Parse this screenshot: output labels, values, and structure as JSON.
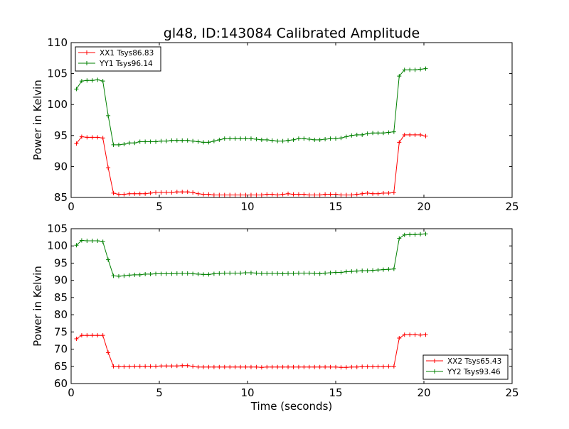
{
  "chart_data": {
    "type": "line",
    "title": "gl48, ID:143084 Calibrated Amplitude",
    "xlabel": "Time (seconds)",
    "panels": [
      {
        "ylabel": "Power in Kelvin",
        "xlim": [
          0,
          25
        ],
        "ylim": [
          85,
          110
        ],
        "xticks": [
          "0",
          "5",
          "10",
          "15",
          "20",
          "25"
        ],
        "yticks": [
          "85",
          "90",
          "95",
          "100",
          "105",
          "110"
        ],
        "legend_position": "upper-left",
        "series": [
          {
            "name": "XX1 Tsys86.83",
            "color": "#ff0000",
            "x": [
              0.3,
              0.6,
              0.9,
              1.2,
              1.5,
              1.8,
              2.1,
              2.4,
              2.7,
              3.0,
              3.3,
              3.6,
              3.9,
              4.2,
              4.5,
              4.8,
              5.1,
              5.4,
              5.7,
              6.0,
              6.3,
              6.6,
              6.9,
              7.2,
              7.5,
              7.8,
              8.1,
              8.4,
              8.7,
              9.0,
              9.3,
              9.6,
              9.9,
              10.2,
              10.5,
              10.8,
              11.1,
              11.4,
              11.7,
              12.0,
              12.3,
              12.6,
              12.9,
              13.2,
              13.5,
              13.8,
              14.1,
              14.4,
              14.7,
              15.0,
              15.3,
              15.6,
              15.9,
              16.2,
              16.5,
              16.8,
              17.1,
              17.4,
              17.7,
              18.0,
              18.3,
              18.6,
              18.9,
              19.2,
              19.5,
              19.8,
              20.1
            ],
            "y": [
              93.7,
              94.8,
              94.7,
              94.7,
              94.7,
              94.6,
              89.8,
              85.7,
              85.5,
              85.5,
              85.6,
              85.6,
              85.6,
              85.6,
              85.7,
              85.8,
              85.8,
              85.8,
              85.8,
              85.9,
              85.9,
              85.9,
              85.8,
              85.6,
              85.5,
              85.5,
              85.4,
              85.4,
              85.4,
              85.4,
              85.4,
              85.4,
              85.4,
              85.4,
              85.4,
              85.4,
              85.5,
              85.5,
              85.4,
              85.5,
              85.6,
              85.5,
              85.5,
              85.5,
              85.4,
              85.4,
              85.4,
              85.5,
              85.5,
              85.5,
              85.4,
              85.4,
              85.4,
              85.5,
              85.6,
              85.7,
              85.6,
              85.6,
              85.7,
              85.7,
              85.8,
              93.9,
              95.1,
              95.1,
              95.1,
              95.1,
              94.9
            ]
          },
          {
            "name": "YY1 Tsys96.14",
            "color": "#008000",
            "x": [
              0.3,
              0.6,
              0.9,
              1.2,
              1.5,
              1.8,
              2.1,
              2.4,
              2.7,
              3.0,
              3.3,
              3.6,
              3.9,
              4.2,
              4.5,
              4.8,
              5.1,
              5.4,
              5.7,
              6.0,
              6.3,
              6.6,
              6.9,
              7.2,
              7.5,
              7.8,
              8.1,
              8.4,
              8.7,
              9.0,
              9.3,
              9.6,
              9.9,
              10.2,
              10.5,
              10.8,
              11.1,
              11.4,
              11.7,
              12.0,
              12.3,
              12.6,
              12.9,
              13.2,
              13.5,
              13.8,
              14.1,
              14.4,
              14.7,
              15.0,
              15.3,
              15.6,
              15.9,
              16.2,
              16.5,
              16.8,
              17.1,
              17.4,
              17.7,
              18.0,
              18.3,
              18.6,
              18.9,
              19.2,
              19.5,
              19.8,
              20.1
            ],
            "y": [
              102.5,
              103.8,
              103.9,
              103.9,
              104.0,
              103.8,
              98.2,
              93.5,
              93.5,
              93.6,
              93.8,
              93.8,
              94.0,
              94.0,
              94.0,
              94.0,
              94.1,
              94.1,
              94.2,
              94.2,
              94.2,
              94.2,
              94.1,
              94.0,
              93.9,
              93.9,
              94.1,
              94.3,
              94.5,
              94.5,
              94.5,
              94.5,
              94.5,
              94.5,
              94.4,
              94.3,
              94.3,
              94.2,
              94.1,
              94.1,
              94.2,
              94.3,
              94.5,
              94.5,
              94.4,
              94.3,
              94.3,
              94.4,
              94.5,
              94.5,
              94.6,
              94.8,
              95.0,
              95.1,
              95.1,
              95.3,
              95.4,
              95.4,
              95.4,
              95.5,
              95.6,
              104.6,
              105.6,
              105.6,
              105.6,
              105.7,
              105.8
            ]
          }
        ]
      },
      {
        "ylabel": "Power in Kelvin",
        "xlim": [
          0,
          25
        ],
        "ylim": [
          60,
          105
        ],
        "xticks": [
          "0",
          "5",
          "10",
          "15",
          "20",
          "25"
        ],
        "yticks": [
          "60",
          "65",
          "70",
          "75",
          "80",
          "85",
          "90",
          "95",
          "100",
          "105"
        ],
        "legend_position": "lower-right",
        "series": [
          {
            "name": "XX2 Tsys65.43",
            "color": "#ff0000",
            "x": [
              0.3,
              0.6,
              0.9,
              1.2,
              1.5,
              1.8,
              2.1,
              2.4,
              2.7,
              3.0,
              3.3,
              3.6,
              3.9,
              4.2,
              4.5,
              4.8,
              5.1,
              5.4,
              5.7,
              6.0,
              6.3,
              6.6,
              6.9,
              7.2,
              7.5,
              7.8,
              8.1,
              8.4,
              8.7,
              9.0,
              9.3,
              9.6,
              9.9,
              10.2,
              10.5,
              10.8,
              11.1,
              11.4,
              11.7,
              12.0,
              12.3,
              12.6,
              12.9,
              13.2,
              13.5,
              13.8,
              14.1,
              14.4,
              14.7,
              15.0,
              15.3,
              15.6,
              15.9,
              16.2,
              16.5,
              16.8,
              17.1,
              17.4,
              17.7,
              18.0,
              18.3,
              18.6,
              18.9,
              19.2,
              19.5,
              19.8,
              20.1
            ],
            "y": [
              73.0,
              74.0,
              74.0,
              74.0,
              74.0,
              74.0,
              69.0,
              65.0,
              64.9,
              64.9,
              64.9,
              65.0,
              65.0,
              65.0,
              65.0,
              65.0,
              65.1,
              65.1,
              65.1,
              65.1,
              65.2,
              65.2,
              65.0,
              64.8,
              64.8,
              64.8,
              64.8,
              64.8,
              64.8,
              64.8,
              64.8,
              64.8,
              64.8,
              64.8,
              64.8,
              64.7,
              64.8,
              64.8,
              64.8,
              64.8,
              64.8,
              64.8,
              64.8,
              64.8,
              64.8,
              64.8,
              64.8,
              64.8,
              64.8,
              64.8,
              64.7,
              64.7,
              64.8,
              64.8,
              64.9,
              64.9,
              64.9,
              64.9,
              64.9,
              65.0,
              65.0,
              73.2,
              74.2,
              74.2,
              74.2,
              74.1,
              74.2
            ]
          },
          {
            "name": "YY2 Tsys93.46",
            "color": "#008000",
            "x": [
              0.3,
              0.6,
              0.9,
              1.2,
              1.5,
              1.8,
              2.1,
              2.4,
              2.7,
              3.0,
              3.3,
              3.6,
              3.9,
              4.2,
              4.5,
              4.8,
              5.1,
              5.4,
              5.7,
              6.0,
              6.3,
              6.6,
              6.9,
              7.2,
              7.5,
              7.8,
              8.1,
              8.4,
              8.7,
              9.0,
              9.3,
              9.6,
              9.9,
              10.2,
              10.5,
              10.8,
              11.1,
              11.4,
              11.7,
              12.0,
              12.3,
              12.6,
              12.9,
              13.2,
              13.5,
              13.8,
              14.1,
              14.4,
              14.7,
              15.0,
              15.3,
              15.6,
              15.9,
              16.2,
              16.5,
              16.8,
              17.1,
              17.4,
              17.7,
              18.0,
              18.3,
              18.6,
              18.9,
              19.2,
              19.5,
              19.8,
              20.1
            ],
            "y": [
              100.2,
              101.6,
              101.5,
              101.5,
              101.5,
              101.2,
              96.0,
              91.3,
              91.2,
              91.3,
              91.5,
              91.6,
              91.6,
              91.8,
              91.8,
              91.9,
              91.9,
              91.9,
              91.9,
              92.0,
              92.0,
              92.0,
              91.9,
              91.8,
              91.7,
              91.7,
              91.9,
              92.0,
              92.1,
              92.1,
              92.1,
              92.1,
              92.2,
              92.2,
              92.1,
              92.0,
              92.0,
              92.0,
              92.0,
              91.9,
              92.0,
              92.0,
              92.1,
              92.1,
              92.1,
              92.0,
              91.9,
              92.1,
              92.2,
              92.3,
              92.3,
              92.5,
              92.6,
              92.7,
              92.8,
              92.8,
              92.9,
              93.0,
              93.1,
              93.2,
              93.3,
              102.2,
              103.2,
              103.3,
              103.3,
              103.4,
              103.5
            ]
          }
        ]
      }
    ]
  }
}
